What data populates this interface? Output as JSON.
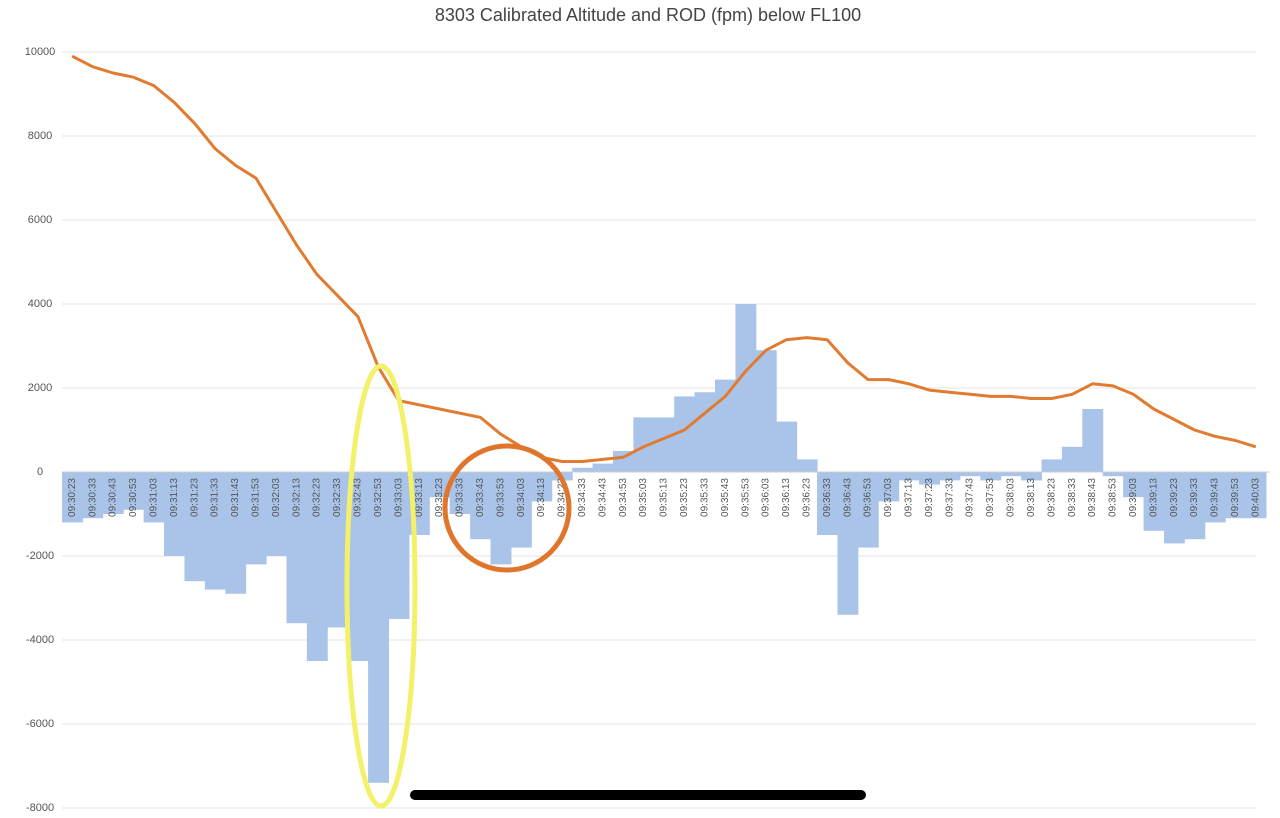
{
  "chart_data": {
    "type": "bar-line",
    "title": "8303 Calibrated Altitude and ROD (fpm) below FL100",
    "categories": [
      "09:30:23",
      "09:30:33",
      "09:30:43",
      "09:30:53",
      "09:31:03",
      "09:31:13",
      "09:31:23",
      "09:31:33",
      "09:31:43",
      "09:31:53",
      "09:32:03",
      "09:32:13",
      "09:32:23",
      "09:32:33",
      "09:32:43",
      "09:32:53",
      "09:33:03",
      "09:33:13",
      "09:33:23",
      "09:33:33",
      "09:33:43",
      "09:33:53",
      "09:34:03",
      "09:34:13",
      "09:34:23",
      "09:34:33",
      "09:34:43",
      "09:34:53",
      "09:35:03",
      "09:35:13",
      "09:35:23",
      "09:35:33",
      "09:35:43",
      "09:35:53",
      "09:36:03",
      "09:36:13",
      "09:36:23",
      "09:36:33",
      "09:36:43",
      "09:36:53",
      "09:37:03",
      "09:37:13",
      "09:37:23",
      "09:37:33",
      "09:37:43",
      "09:37:53",
      "09:38:03",
      "09:38:13",
      "09:38:23",
      "09:38:33",
      "09:38:43",
      "09:38:53",
      "09:39:03",
      "09:39:13",
      "09:39:23",
      "09:39:33",
      "09:39:43",
      "09:39:53",
      "09:40:03"
    ],
    "series": [
      {
        "type": "bar",
        "color": "#a9c4e8",
        "values": [
          -1200,
          -1100,
          -1000,
          -900,
          -1200,
          -2000,
          -2600,
          -2800,
          -2900,
          -2200,
          -2000,
          -3600,
          -4500,
          -3700,
          -4500,
          -7400,
          -3500,
          -1500,
          -600,
          -1000,
          -1600,
          -2200,
          -1800,
          -700,
          -200,
          100,
          200,
          500,
          1300,
          1300,
          1800,
          1900,
          2200,
          4000,
          2900,
          1200,
          300,
          -1500,
          -3400,
          -1800,
          -700,
          -200,
          -300,
          -200,
          -100,
          -200,
          -100,
          -200,
          300,
          600,
          1500,
          -100,
          -600,
          -1400,
          -1700,
          -1600,
          -1200,
          -1100,
          -1100
        ]
      },
      {
        "type": "line",
        "color": "#e07b30",
        "values": [
          9900,
          9650,
          9500,
          9400,
          9200,
          8800,
          8300,
          7700,
          7300,
          7000,
          6200,
          5400,
          4700,
          4200,
          3700,
          2500,
          1700,
          1600,
          1500,
          1400,
          1300,
          900,
          600,
          350,
          250,
          250,
          300,
          350,
          600,
          800,
          1000,
          1400,
          1800,
          2400,
          2900,
          3150,
          3200,
          3150,
          2600,
          2200,
          2200,
          2100,
          1950,
          1900,
          1850,
          1800,
          1800,
          1750,
          1750,
          1850,
          2100,
          2050,
          1850,
          1500,
          1250,
          1000,
          850,
          750,
          600
        ]
      }
    ],
    "ylim": [
      -8000,
      10000
    ],
    "yticks": [
      -8000,
      -6000,
      -4000,
      -2000,
      0,
      2000,
      4000,
      6000,
      8000,
      10000
    ],
    "grid": true
  }
}
